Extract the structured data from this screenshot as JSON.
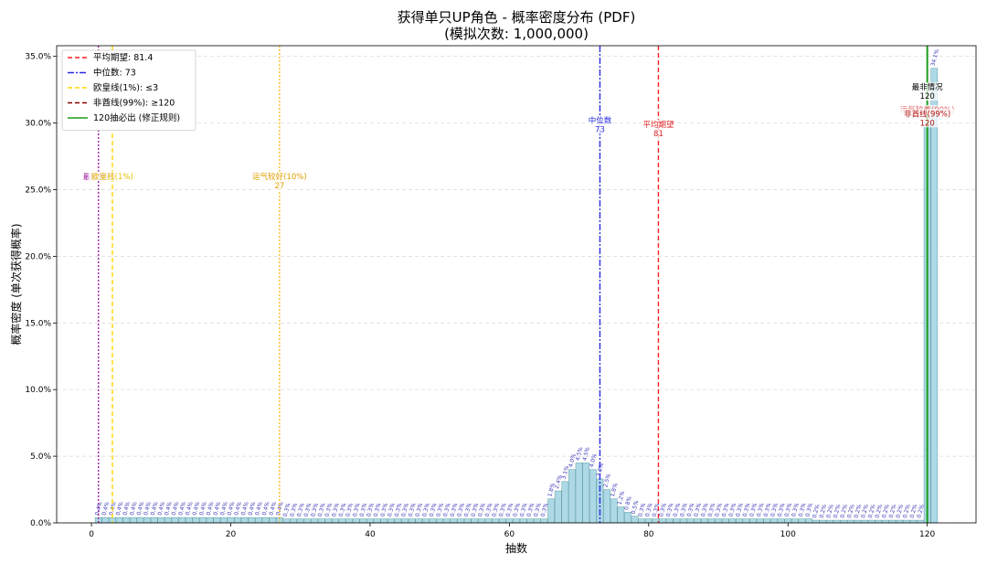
{
  "chart_data": {
    "type": "bar",
    "title": "获得单只UP角色 - 概率密度分布 (PDF)",
    "subtitle": "(模拟次数: 1,000,000)",
    "xlabel": "抽数",
    "ylabel": "概率密度 (单次获得概率)",
    "xlim": [
      -5,
      127
    ],
    "ylim": [
      0,
      35.8
    ],
    "x_ticks": [
      0,
      20,
      40,
      60,
      80,
      100,
      120
    ],
    "x_tick_labels": [
      "0",
      "20",
      "40",
      "60",
      "80",
      "100",
      "120"
    ],
    "y_ticks": [
      0,
      5,
      10,
      15,
      20,
      25,
      30,
      35
    ],
    "y_tick_labels": [
      "0.0%",
      "5.0%",
      "10.0%",
      "15.0%",
      "20.0%",
      "25.0%",
      "30.0%",
      "35.0%"
    ],
    "grid": true,
    "bar_color": "#add8e6",
    "bar_edge_color": "#5f9ea0",
    "bar_label_color": "#3838b8",
    "x": [
      1,
      2,
      3,
      4,
      5,
      6,
      7,
      8,
      9,
      10,
      11,
      12,
      13,
      14,
      15,
      16,
      17,
      18,
      19,
      20,
      21,
      22,
      23,
      24,
      25,
      26,
      27,
      28,
      29,
      30,
      31,
      32,
      33,
      34,
      35,
      36,
      37,
      38,
      39,
      40,
      41,
      42,
      43,
      44,
      45,
      46,
      47,
      48,
      49,
      50,
      51,
      52,
      53,
      54,
      55,
      56,
      57,
      58,
      59,
      60,
      61,
      62,
      63,
      64,
      65,
      66,
      67,
      68,
      69,
      70,
      71,
      72,
      73,
      74,
      75,
      76,
      77,
      78,
      79,
      80,
      81,
      82,
      83,
      84,
      85,
      86,
      87,
      88,
      89,
      90,
      91,
      92,
      93,
      94,
      95,
      96,
      97,
      98,
      99,
      100,
      101,
      102,
      103,
      104,
      105,
      106,
      107,
      108,
      109,
      110,
      111,
      112,
      113,
      114,
      115,
      116,
      117,
      118,
      119,
      120,
      121
    ],
    "values": [
      0.4,
      0.4,
      0.4,
      0.4,
      0.4,
      0.4,
      0.4,
      0.4,
      0.4,
      0.4,
      0.4,
      0.4,
      0.4,
      0.4,
      0.4,
      0.4,
      0.4,
      0.4,
      0.4,
      0.4,
      0.4,
      0.4,
      0.4,
      0.4,
      0.4,
      0.4,
      0.4,
      0.3,
      0.3,
      0.3,
      0.3,
      0.3,
      0.3,
      0.3,
      0.3,
      0.3,
      0.3,
      0.3,
      0.3,
      0.3,
      0.3,
      0.3,
      0.3,
      0.3,
      0.3,
      0.3,
      0.3,
      0.3,
      0.3,
      0.3,
      0.3,
      0.3,
      0.3,
      0.3,
      0.3,
      0.3,
      0.3,
      0.3,
      0.3,
      0.3,
      0.3,
      0.3,
      0.3,
      0.3,
      0.3,
      1.8,
      2.4,
      3.1,
      4.0,
      4.5,
      4.5,
      4.0,
      3.3,
      2.5,
      1.8,
      1.2,
      0.8,
      0.5,
      0.3,
      0.3,
      0.3,
      0.3,
      0.3,
      0.3,
      0.3,
      0.3,
      0.3,
      0.3,
      0.3,
      0.3,
      0.3,
      0.3,
      0.3,
      0.3,
      0.3,
      0.3,
      0.3,
      0.3,
      0.3,
      0.3,
      0.3,
      0.3,
      0.3,
      0.2,
      0.2,
      0.2,
      0.2,
      0.2,
      0.2,
      0.2,
      0.2,
      0.2,
      0.2,
      0.2,
      0.2,
      0.2,
      0.2,
      0.2,
      0.2,
      30.0,
      34.1
    ],
    "value_labels": [
      "0.4%",
      "0.4%",
      "0.4%",
      "0.4%",
      "0.4%",
      "0.4%",
      "0.4%",
      "0.4%",
      "0.4%",
      "0.4%",
      "0.4%",
      "0.4%",
      "0.4%",
      "0.4%",
      "0.4%",
      "0.4%",
      "0.4%",
      "0.4%",
      "0.4%",
      "0.4%",
      "0.4%",
      "0.4%",
      "0.4%",
      "0.4%",
      "0.4%",
      "0.4%",
      "0.4%",
      "0.3%",
      "0.3%",
      "0.3%",
      "0.3%",
      "0.3%",
      "0.3%",
      "0.3%",
      "0.3%",
      "0.3%",
      "0.3%",
      "0.3%",
      "0.3%",
      "0.3%",
      "0.3%",
      "0.3%",
      "0.3%",
      "0.3%",
      "0.3%",
      "0.3%",
      "0.3%",
      "0.3%",
      "0.3%",
      "0.3%",
      "0.3%",
      "0.3%",
      "0.3%",
      "0.3%",
      "0.3%",
      "0.3%",
      "0.3%",
      "0.3%",
      "0.3%",
      "0.3%",
      "0.3%",
      "0.3%",
      "0.3%",
      "0.3%",
      "0.3%",
      "1.8%",
      "2.4%",
      "3.1%",
      "4.0%",
      "4.5%",
      "4.5%",
      "4.0%",
      "3.3%",
      "2.5%",
      "1.8%",
      "1.2%",
      "0.8%",
      "0.5%",
      "0.3%",
      "0.3%",
      "0.3%",
      "0.3%",
      "0.3%",
      "0.3%",
      "0.3%",
      "0.3%",
      "0.3%",
      "0.3%",
      "0.3%",
      "0.3%",
      "0.3%",
      "0.3%",
      "0.3%",
      "0.3%",
      "0.3%",
      "0.3%",
      "0.3%",
      "0.3%",
      "0.3%",
      "0.3%",
      "0.3%",
      "0.3%",
      "0.3%",
      "0.2%",
      "0.2%",
      "0.2%",
      "0.2%",
      "0.2%",
      "0.2%",
      "0.2%",
      "0.2%",
      "0.2%",
      "0.2%",
      "0.2%",
      "0.2%",
      "0.2%",
      "0.2%",
      "0.2%",
      "0.2%",
      "",
      "34.1%"
    ],
    "vlines": [
      {
        "x": 81.4,
        "color": "#ff2020",
        "dash": "5,3",
        "width": 1.4
      },
      {
        "x": 73,
        "color": "#2a2adf",
        "dash": "7,2,2,2",
        "width": 1.4
      },
      {
        "x": 3,
        "color": "#ffd700",
        "dash": "5,3",
        "width": 1.4
      },
      {
        "x": 120,
        "color": "#8b0000",
        "dash": "5,3",
        "width": 1.4
      },
      {
        "x": 120,
        "color": "#1a9e1a",
        "dash": "",
        "width": 2
      },
      {
        "x": 1,
        "color": "#a020a0",
        "dash": "2,2",
        "width": 1.4
      },
      {
        "x": 27,
        "color": "#ffb000",
        "dash": "2,2",
        "width": 1.2
      }
    ],
    "legend": {
      "position": "top-left",
      "entries": [
        {
          "label": "平均期望: 81.4",
          "color": "#ff2020",
          "dash": "5,3"
        },
        {
          "label": "中位数: 73",
          "color": "#2a2adf",
          "dash": "7,2,2,2"
        },
        {
          "label": "欧皇线(1%): ≤3",
          "color": "#ffd700",
          "dash": "5,3"
        },
        {
          "label": "非酋线(99%): ≥120",
          "color": "#8b0000",
          "dash": "5,3"
        },
        {
          "label": "120抽必出 (修正规则)",
          "color": "#1a9e1a",
          "dash": ""
        }
      ]
    },
    "annotations": [
      {
        "x": 73,
        "y": 30.0,
        "lines": [
          "中位数",
          "73"
        ],
        "color": "#2a2adf"
      },
      {
        "x": 81.4,
        "y": 29.7,
        "lines": [
          "平均期望",
          "81"
        ],
        "color": "#e02020"
      },
      {
        "x": 120,
        "y": 32.5,
        "lines": [
          "最非情况",
          "120"
        ],
        "color": "#000000"
      },
      {
        "x": 120,
        "y": 30.8,
        "lines": [
          "运气较差(90%)"
        ],
        "color": "#e06060"
      },
      {
        "x": 120,
        "y": 30.5,
        "lines": [
          "非酋线(99%)",
          "120"
        ],
        "color": "#b01010"
      },
      {
        "x": 1,
        "y": 25.8,
        "lines": [
          "最欧情况"
        ],
        "color": "#a020a0"
      },
      {
        "x": 3,
        "y": 25.8,
        "lines": [
          "欧皇线(1%)"
        ],
        "color": "#e8c000"
      },
      {
        "x": 27,
        "y": 25.8,
        "lines": [
          "运气较好(10%)",
          "27"
        ],
        "color": "#e0a000"
      }
    ]
  }
}
